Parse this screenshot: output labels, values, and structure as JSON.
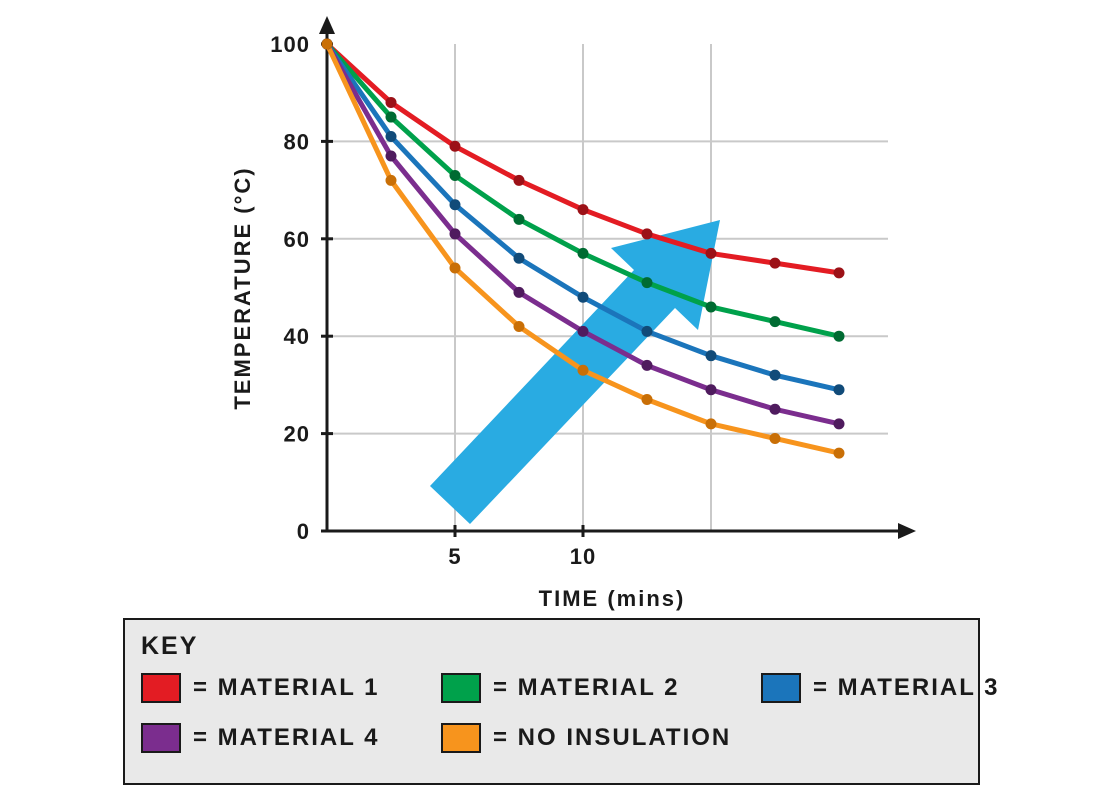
{
  "chart_data": {
    "type": "line",
    "title": "",
    "xlabel": "TIME (mins)",
    "ylabel": "TEMPERATURE (°C)",
    "xlim": [
      0,
      22
    ],
    "ylim": [
      0,
      100
    ],
    "x_ticks": [
      5,
      10
    ],
    "y_ticks": [
      0,
      20,
      40,
      60,
      80,
      100
    ],
    "grid": true,
    "legend_position": "bottom",
    "x": [
      0,
      2.5,
      5,
      7.5,
      10,
      12.5,
      15,
      17.5,
      20
    ],
    "series": [
      {
        "name": "MATERIAL 1",
        "color": "#e31c23",
        "marker_color": "#9c1117",
        "values": [
          100,
          88,
          79,
          72,
          66,
          61,
          57,
          55,
          53
        ]
      },
      {
        "name": "MATERIAL 2",
        "color": "#00a14b",
        "marker_color": "#006b32",
        "values": [
          100,
          85,
          73,
          64,
          57,
          51,
          46,
          43,
          40
        ]
      },
      {
        "name": "MATERIAL 3",
        "color": "#1b75bb",
        "marker_color": "#114b79",
        "values": [
          100,
          81,
          67,
          56,
          48,
          41,
          36,
          32,
          29
        ]
      },
      {
        "name": "MATERIAL 4",
        "color": "#7b2d8e",
        "marker_color": "#4f1b5e",
        "values": [
          100,
          77,
          61,
          49,
          41,
          34,
          29,
          25,
          22
        ]
      },
      {
        "name": "NO INSULATION",
        "color": "#f7941d",
        "marker_color": "#c96f06",
        "values": [
          100,
          72,
          54,
          42,
          33,
          27,
          22,
          19,
          16
        ]
      }
    ],
    "annotations": [
      {
        "type": "block-arrow",
        "color": "#29abe2"
      }
    ]
  },
  "key": {
    "title": "KEY",
    "items": [
      {
        "label": "= MATERIAL 1",
        "color": "#e31c23"
      },
      {
        "label": "= MATERIAL 2",
        "color": "#00a14b"
      },
      {
        "label": "= MATERIAL 3",
        "color": "#1b75bb"
      },
      {
        "label": "= MATERIAL 4",
        "color": "#7b2d8e"
      },
      {
        "label": "= NO INSULATION",
        "color": "#f7941d"
      }
    ]
  }
}
